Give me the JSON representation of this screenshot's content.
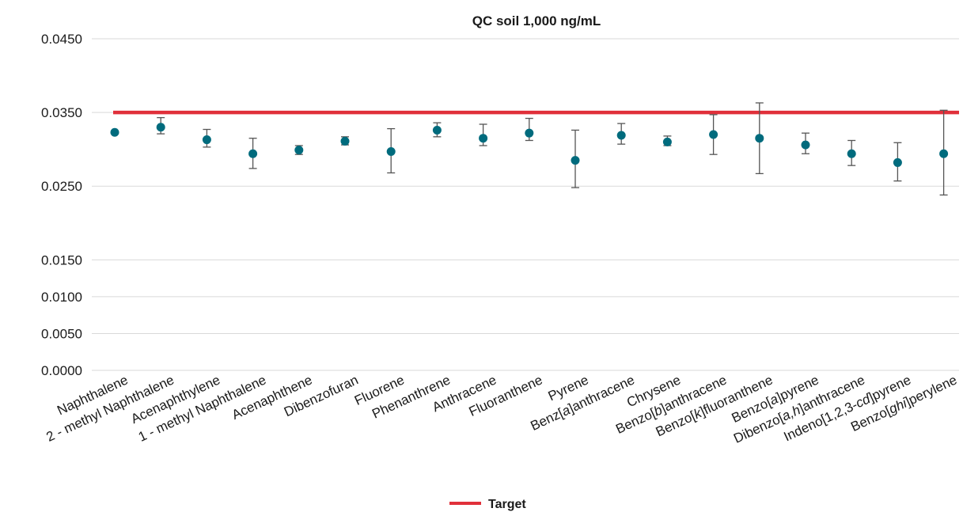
{
  "chart_data": {
    "type": "scatter",
    "title": "QC soil 1,000 ng/mL",
    "xlabel": "",
    "ylabel": "",
    "ylim": [
      0.0,
      0.045
    ],
    "yticks": [
      "0.0000",
      "0.0050",
      "0.0100",
      "0.0150",
      "0.0250",
      "0.0350",
      "0.0450"
    ],
    "ytick_values": [
      0.0,
      0.005,
      0.01,
      0.015,
      0.025,
      0.035,
      0.045
    ],
    "grid": true,
    "legend_position": "bottom",
    "categories": [
      {
        "pre": "Naphthalene",
        "it": "",
        "post": ""
      },
      {
        "pre": "2 - methyl Naphthalene",
        "it": "",
        "post": ""
      },
      {
        "pre": "Acenaphthylene",
        "it": "",
        "post": ""
      },
      {
        "pre": "1 - methyl Naphthalene",
        "it": "",
        "post": ""
      },
      {
        "pre": "Acenaphthene",
        "it": "",
        "post": ""
      },
      {
        "pre": "Dibenzofuran",
        "it": "",
        "post": ""
      },
      {
        "pre": "Fluorene",
        "it": "",
        "post": ""
      },
      {
        "pre": "Phenanthrene",
        "it": "",
        "post": ""
      },
      {
        "pre": "Anthracene",
        "it": "",
        "post": ""
      },
      {
        "pre": "Fluoranthene",
        "it": "",
        "post": ""
      },
      {
        "pre": "Pyrene",
        "it": "",
        "post": ""
      },
      {
        "pre": "Benz[",
        "it": "a",
        "post": "]anthracene"
      },
      {
        "pre": "Chrysene",
        "it": "",
        "post": ""
      },
      {
        "pre": "Benzo[",
        "it": "b",
        "post": "]anthracene"
      },
      {
        "pre": "Benzo[",
        "it": "k",
        "post": "]fluoranthene"
      },
      {
        "pre": "Benzo[",
        "it": "a",
        "post": "]pyrene"
      },
      {
        "pre": "Dibenzo[",
        "it": "a,h",
        "post": "]anthracene"
      },
      {
        "pre": "Indeno[1,2,3-",
        "it": "cd",
        "post": "]pyrene"
      },
      {
        "pre": "Benzo[",
        "it": "ghi",
        "post": "]perylene"
      }
    ],
    "series": [
      {
        "values": [
          0.0323,
          0.033,
          0.0313,
          0.0294,
          0.0299,
          0.0311,
          0.0297,
          0.0326,
          0.0315,
          0.0322,
          0.0285,
          0.0319,
          0.031,
          0.032,
          0.0315,
          0.0306,
          0.0294,
          0.0282,
          0.0294
        ],
        "error_low": [
          0.0323,
          0.0321,
          0.0303,
          0.0274,
          0.0293,
          0.0306,
          0.0268,
          0.0317,
          0.0305,
          0.0312,
          0.0248,
          0.0307,
          0.0305,
          0.0293,
          0.0267,
          0.0294,
          0.0278,
          0.0257,
          0.0238
        ],
        "error_high": [
          0.0323,
          0.0343,
          0.0327,
          0.0315,
          0.0305,
          0.0317,
          0.0328,
          0.0336,
          0.0334,
          0.0342,
          0.0326,
          0.0335,
          0.0318,
          0.0347,
          0.0363,
          0.0322,
          0.0312,
          0.0309,
          0.0353
        ],
        "color": "#006b7d"
      },
      {
        "name": "Target",
        "type": "line",
        "value": 0.035,
        "color": "#e0303a"
      }
    ],
    "gridline_color": "#d9d9d9",
    "errorbar_color": "#555555",
    "text_color": "#1a1a1a"
  }
}
